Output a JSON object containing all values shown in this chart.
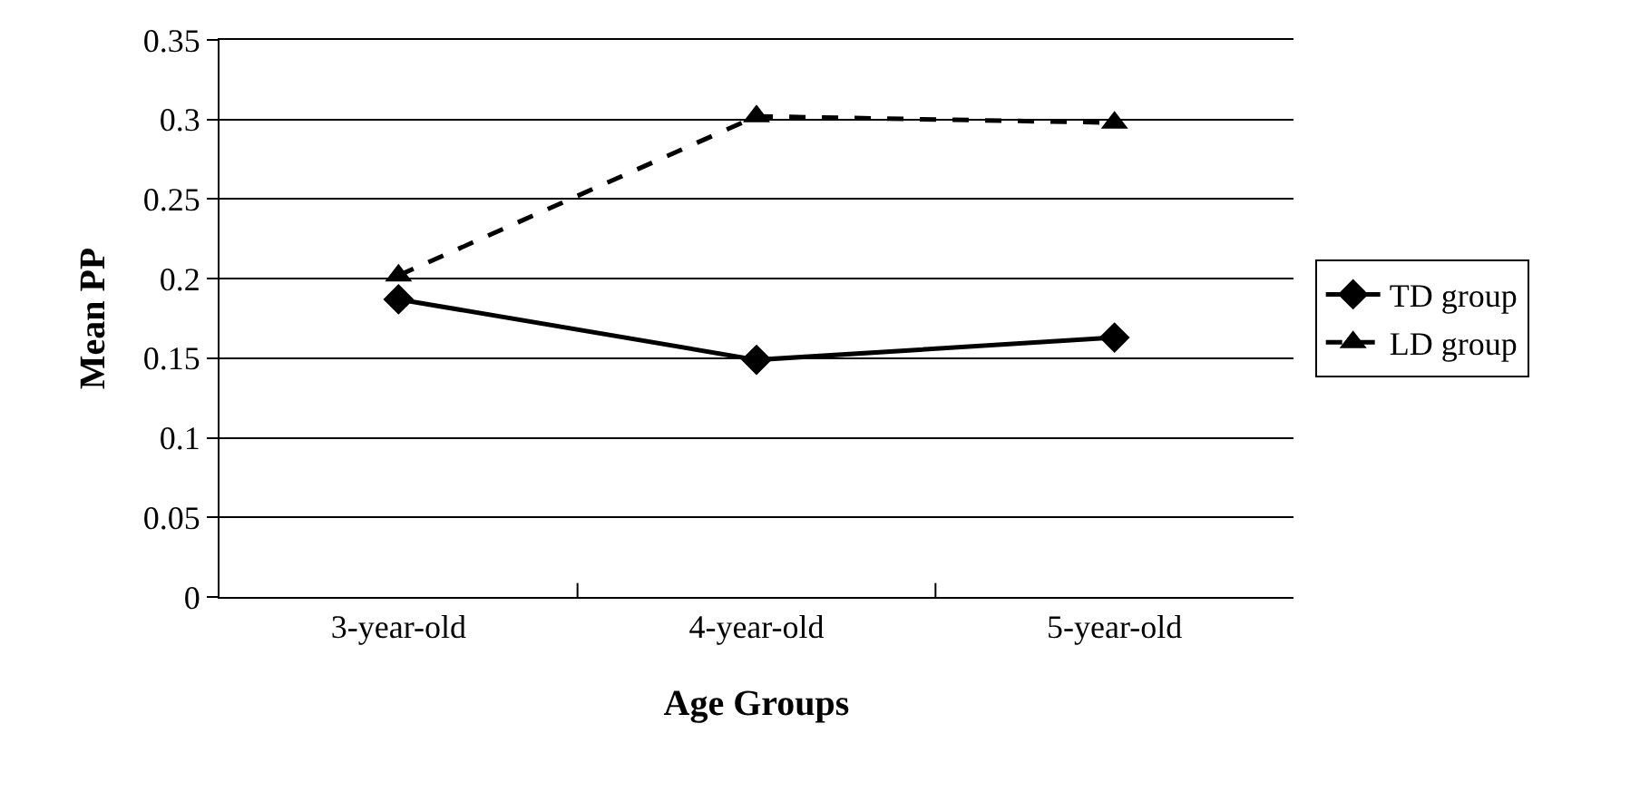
{
  "chart_data": {
    "type": "line",
    "xlabel": "Age Groups",
    "ylabel": "Mean PP",
    "categories": [
      "3-year-old",
      "4-year-old",
      "5-year-old"
    ],
    "series": [
      {
        "name": "TD group",
        "color": "#000000",
        "values": [
          0.187,
          0.149,
          0.163
        ],
        "marker": "diamond",
        "line_style": "solid"
      },
      {
        "name": "LD group",
        "color": "#000000",
        "values": [
          0.202,
          0.302,
          0.298
        ],
        "marker": "triangle",
        "line_style": "dashed"
      }
    ],
    "ylim": [
      0,
      0.35
    ],
    "yticks": [
      0,
      0.05,
      0.1,
      0.15,
      0.2,
      0.25,
      0.3,
      0.35
    ],
    "grid": "y",
    "legend": "right"
  }
}
